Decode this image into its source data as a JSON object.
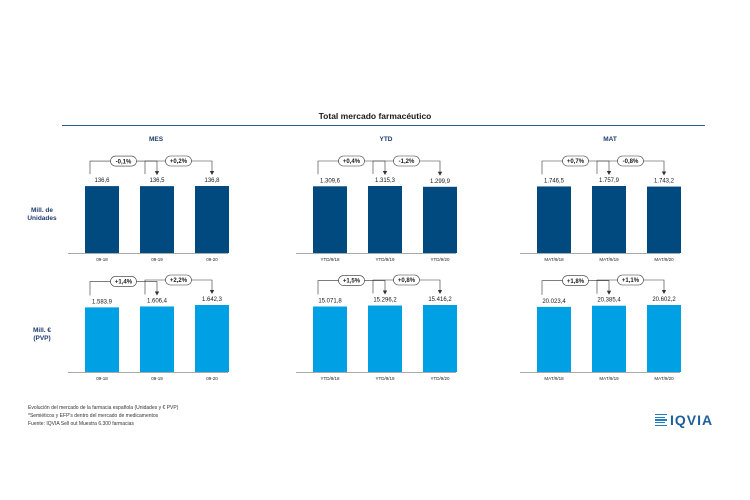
{
  "page": {
    "title": "Total mercado farmacéutico",
    "row_labels": [
      {
        "line1": "Mill. de",
        "line2": "Unidades"
      },
      {
        "line1": "Mill. €",
        "line2": "(PVP)"
      }
    ],
    "footnotes": [
      "Evolución del mercado de la farmacia española (Unidades y € PVP)",
      "*Semiéticos y EFP's dentro del mercado de medicamentos",
      "Fuente: IQVIA Sell out Muestra 6.300 farmacias"
    ],
    "logo_text": "IQVIA",
    "colors": {
      "units_bar": "#004a80",
      "value_bar": "#00a0e4",
      "rule": "#2f5f8a",
      "heading": "#1f3b6e"
    }
  },
  "chart_data": [
    {
      "type": "bar",
      "group": "MES",
      "row": "Mill. de Unidades",
      "categories": [
        "09-18",
        "09-19",
        "09-20"
      ],
      "values": [
        136.6,
        136.5,
        136.8
      ],
      "value_labels": [
        "136,6",
        "136,5",
        "136,8"
      ],
      "changes": [
        "-0,1%",
        "+0,2%"
      ]
    },
    {
      "type": "bar",
      "group": "YTD",
      "row": "Mill. de Unidades",
      "categories": [
        "YTD/9/18",
        "YTD/9/19",
        "YTD/9/20"
      ],
      "values": [
        1309.6,
        1315.3,
        1299.9
      ],
      "value_labels": [
        "1.309,6",
        "1.315,3",
        "1.299,9"
      ],
      "changes": [
        "+0,4%",
        "-1,2%"
      ]
    },
    {
      "type": "bar",
      "group": "MAT",
      "row": "Mill. de Unidades",
      "categories": [
        "MAT/9/18",
        "MAT/9/19",
        "MAT/9/20"
      ],
      "values": [
        1746.5,
        1757.9,
        1743.2
      ],
      "value_labels": [
        "1.746,5",
        "1.757,9",
        "1.743,2"
      ],
      "changes": [
        "+0,7%",
        "-0,8%"
      ]
    },
    {
      "type": "bar",
      "group": "MES",
      "row": "Mill. € (PVP)",
      "categories": [
        "09-18",
        "09-19",
        "09-20"
      ],
      "values": [
        1583.9,
        1606.4,
        1642.3
      ],
      "value_labels": [
        "1.583,9",
        "1.606,4",
        "1.642,3"
      ],
      "changes": [
        "+1,4%",
        "+2,2%"
      ]
    },
    {
      "type": "bar",
      "group": "YTD",
      "row": "Mill. € (PVP)",
      "categories": [
        "YTD/9/18",
        "YTD/9/19",
        "YTD/9/20"
      ],
      "values": [
        15071.8,
        15296.2,
        15416.2
      ],
      "value_labels": [
        "15.071,8",
        "15.296,2",
        "15.416,2"
      ],
      "changes": [
        "+1,5%",
        "+0,8%"
      ]
    },
    {
      "type": "bar",
      "group": "MAT",
      "row": "Mill. € (PVP)",
      "categories": [
        "MAT/9/18",
        "MAT/9/19",
        "MAT/9/20"
      ],
      "values": [
        20023.4,
        20385.4,
        20602.2
      ],
      "value_labels": [
        "20.023,4",
        "20.385,4",
        "20.602,2"
      ],
      "changes": [
        "+1,8%",
        "+1,1%"
      ]
    }
  ]
}
